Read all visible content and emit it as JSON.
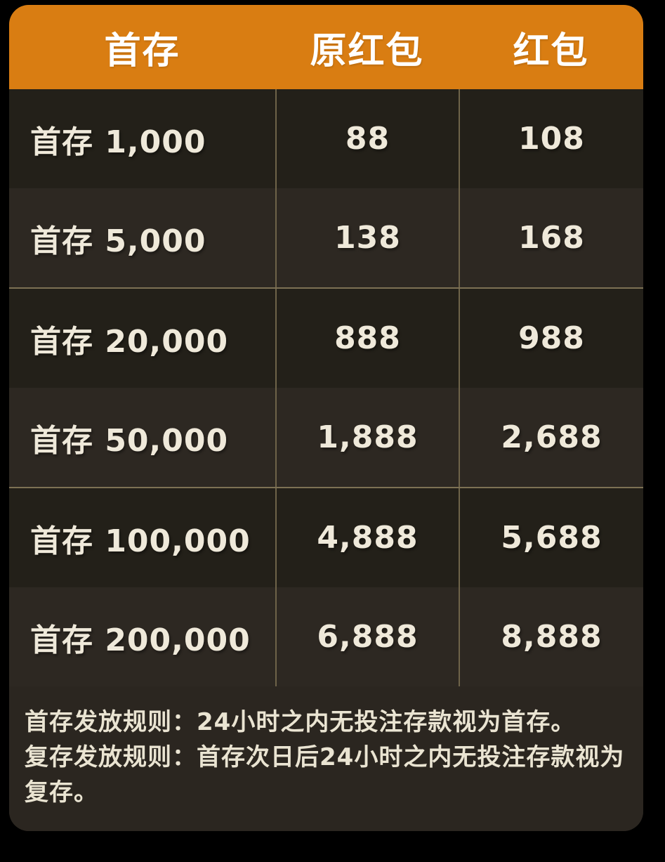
{
  "card": {
    "header": {
      "columns": [
        "首存",
        "原红包",
        "红包"
      ]
    },
    "table": {
      "rows": [
        {
          "tier": "首存 1,000",
          "original": "88",
          "current": "108"
        },
        {
          "tier": "首存 5,000",
          "original": "138",
          "current": "168"
        },
        {
          "tier": "首存 20,000",
          "original": "888",
          "current": "988"
        },
        {
          "tier": "首存 50,000",
          "original": "1,888",
          "current": "2,688"
        },
        {
          "tier": "首存 100,000",
          "original": "4,888",
          "current": "5,688"
        },
        {
          "tier": "首存 200,000",
          "original": "6,888",
          "current": "8,888"
        }
      ]
    },
    "footer": {
      "line1": "首存发放规则：24小时之内无投注存款视为首存。",
      "line2": "复存发放规则：首存次日后24小时之内无投注存款视为复存。"
    }
  },
  "colors": {
    "page_bg": "#000000",
    "header_bg": "#D97D12",
    "header_text": "#FFFFFF",
    "row_dark": "#232019",
    "row_light": "#2D2822",
    "footer_bg": "#2B2620",
    "divider_line": "#7D7154",
    "column_divider": "#6E6349",
    "cell_text": "#EFE9DA"
  }
}
